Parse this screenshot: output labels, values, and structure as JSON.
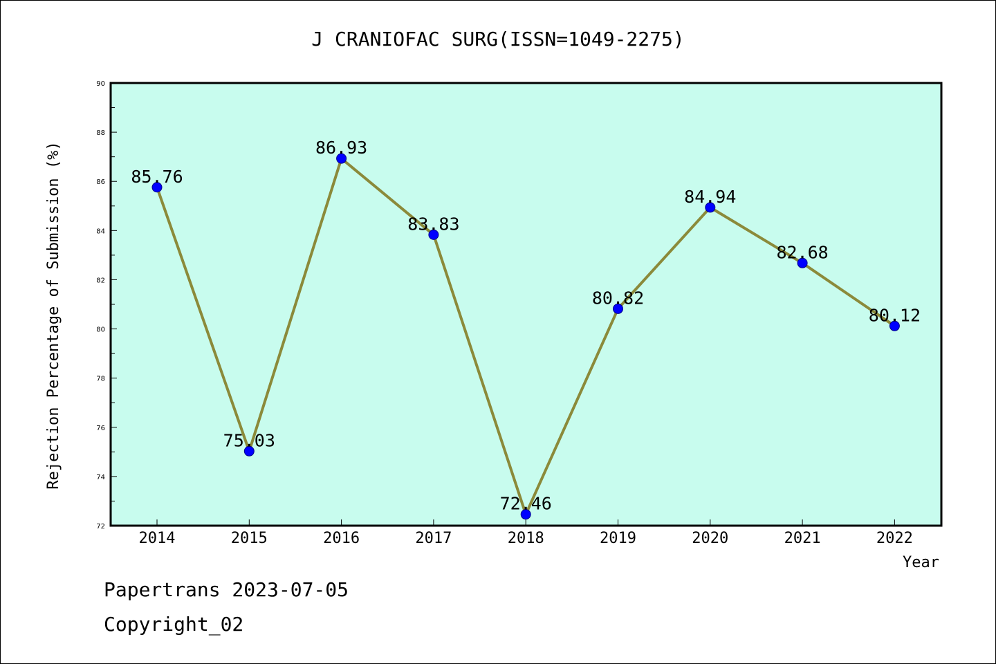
{
  "chart_data": {
    "type": "line",
    "title": "J CRANIOFAC SURG(ISSN=1049-2275)",
    "xlabel": "Year",
    "ylabel": "Rejection Percentage of Submission (%)",
    "categories": [
      "2014",
      "2015",
      "2016",
      "2017",
      "2018",
      "2019",
      "2020",
      "2021",
      "2022"
    ],
    "values": [
      85.76,
      75.03,
      86.93,
      83.83,
      72.46,
      80.82,
      84.94,
      82.68,
      80.12
    ],
    "data_labels": [
      "85.76",
      "75.03",
      "86.93",
      "83.83",
      "72.46",
      "80.82",
      "84.94",
      "82.68",
      "80.12"
    ],
    "ylim": [
      72,
      90
    ],
    "yticks": [
      72,
      74,
      76,
      78,
      80,
      82,
      84,
      86,
      88,
      90
    ],
    "grid": false,
    "colors": {
      "plot_background": "#c8fcee",
      "line": "#8b8a3a",
      "marker": "#0000ff"
    }
  },
  "footer": {
    "line1": "Papertrans 2023-07-05",
    "line2": "Copyright_02"
  }
}
